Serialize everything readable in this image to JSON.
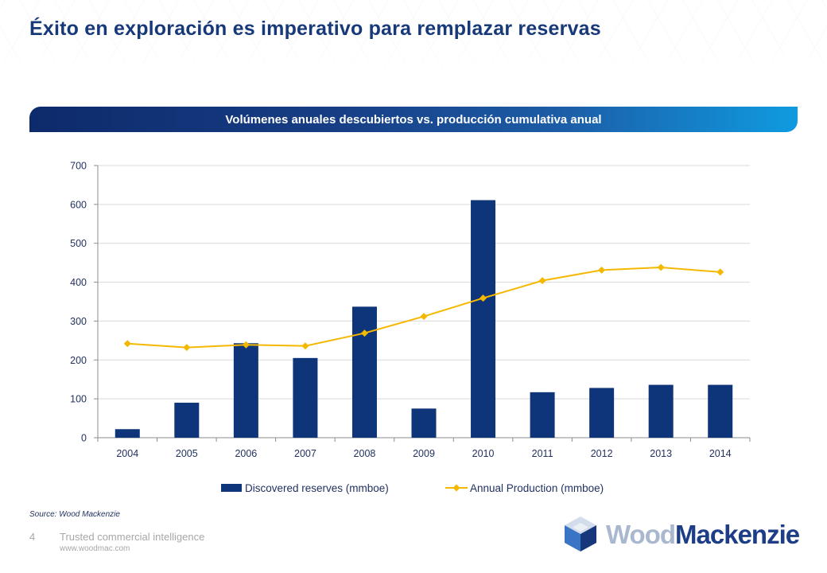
{
  "page": {
    "title": "Éxito en exploración es imperativo para remplazar reservas",
    "banner_title": "Volúmenes anuales descubiertos vs. producción cumulativa anual",
    "source": "Source: Wood Mackenzie",
    "page_number": "4",
    "tagline": "Trusted commercial intelligence",
    "website": "www.woodmac.com"
  },
  "logo": {
    "word1": "Wood",
    "word2": "Mackenzie",
    "icon": "cube-logo-icon"
  },
  "colors": {
    "bar": "#0e3579",
    "line": "#f5b800",
    "title": "#17397a",
    "axis_text": "#1f2f5e",
    "grid": "#d9d9d9"
  },
  "chart_data": {
    "type": "bar",
    "categories": [
      "2004",
      "2005",
      "2006",
      "2007",
      "2008",
      "2009",
      "2010",
      "2011",
      "2012",
      "2013",
      "2014"
    ],
    "series": [
      {
        "name": "Discovered reserves (mmboe)",
        "type": "bar",
        "values": [
          22,
          90,
          243,
          205,
          337,
          75,
          611,
          117,
          128,
          136,
          136
        ]
      },
      {
        "name": "Annual Production (mmboe)",
        "type": "line",
        "marker": "diamond",
        "values": [
          242,
          232,
          239,
          236,
          269,
          312,
          359,
          404,
          431,
          438,
          426
        ]
      }
    ],
    "ylim": [
      0,
      700
    ],
    "yticks": [
      0,
      100,
      200,
      300,
      400,
      500,
      600,
      700
    ],
    "grid": true,
    "legend_position": "bottom"
  }
}
